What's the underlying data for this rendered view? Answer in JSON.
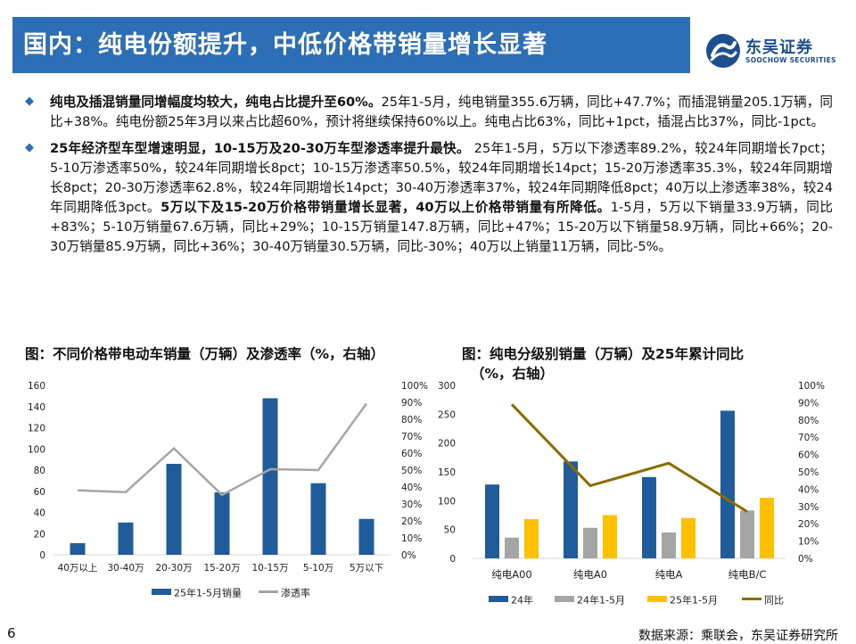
{
  "header": {
    "title": "国内：纯电份额提升，中低价格带销量增长显著",
    "logo_name": "东吴证券",
    "logo_en": "SOOCHOW SECURITIES"
  },
  "bullets": [
    {
      "bold": "纯电及插混销量同增幅度均较大，纯电占比提升至60%。",
      "text": "25年1-5月，纯电销量355.6万辆，同比+47.7%；而插混销量205.1万辆，同比+38%。纯电份额25年3月以来占比超60%，预计将继续保持60%以上。纯电占比63%，同比+1pct，插混占比37%，同比-1pct。"
    },
    {
      "bold": "25年经济型车型增速明显，10-15万及20-30万车型渗透率提升最快。",
      "text": " 25年1-5月，5万以下渗透率89.2%，较24年同期增长7pct；5-10万渗透率50%，较24年同期增长8pct；10-15万渗透率50.5%，较24年同期增长14pct；15-20万渗透率35.3%，较24年同期增长8pct；20-30万渗透率62.8%，较24年同期增长14pct；30-40万渗透率37%，较24年同期降低8pct；40万以上渗透率38%，较24年同期降低3pct。",
      "bold2": "5万以下及15-20万价格带销量增长显著，40万以上价格带销量有所降低。",
      "text2": "1-5月，5万以下销量33.9万辆，同比+83%；5-10万销量67.6万辆，同比+29%；10-15万销量147.8万辆，同比+47%；15-20万以下销量58.9万辆，同比+66%；20-30万销量85.9万辆，同比+36%；30-40万销量30.5万辆，同比-30%；40万以上销量11万辆，同比-5%。"
    }
  ],
  "chart_titles": {
    "left": "图：不同价格带电动车销量（万辆）及渗透率（%，右轴）",
    "right_line1": "图：纯电分级别销量（万辆）及25年累计同比",
    "right_line2": "（%，右轴）"
  },
  "colors": {
    "accent": "#2c6fb7",
    "bar_blue": "#1f5c99",
    "line_gray": "#a6a6a6",
    "bar_gray": "#a5a5a5",
    "bar_gold": "#ffc000",
    "line_olive": "#8c6b00"
  },
  "chart_data": [
    {
      "type": "bar",
      "categories": [
        "40万以上",
        "30-40万",
        "20-30万",
        "15-20万",
        "10-15万",
        "5-10万",
        "5万以下"
      ],
      "series": [
        {
          "name": "25年1-5月销量",
          "type": "bar",
          "axis": "left",
          "values": [
            11,
            30.5,
            85.9,
            58.9,
            147.8,
            67.6,
            33.9
          ]
        },
        {
          "name": "渗透率",
          "type": "line",
          "axis": "right",
          "values": [
            38,
            37,
            62.8,
            35.3,
            50.5,
            50,
            89.2
          ]
        }
      ],
      "y_left": {
        "min": 0,
        "max": 160,
        "ticks": [
          "0",
          "20",
          "40",
          "60",
          "80",
          "100",
          "120",
          "140",
          "160"
        ]
      },
      "y_right": {
        "min": 0,
        "max": 100,
        "ticks": [
          "0%",
          "10%",
          "20%",
          "30%",
          "40%",
          "50%",
          "60%",
          "70%",
          "80%",
          "90%",
          "100%"
        ]
      },
      "legend_position": "bottom",
      "grid": false
    },
    {
      "type": "bar",
      "categories": [
        "纯电A00",
        "纯电A0",
        "纯电A",
        "纯电B/C"
      ],
      "series": [
        {
          "name": "24年",
          "type": "bar",
          "axis": "left",
          "values": [
            128,
            168,
            141,
            256
          ]
        },
        {
          "name": "24年1-5月",
          "type": "bar",
          "axis": "left",
          "values": [
            36,
            53,
            45,
            83
          ]
        },
        {
          "name": "25年1-5月",
          "type": "bar",
          "axis": "left",
          "values": [
            68,
            75,
            70,
            105
          ]
        },
        {
          "name": "同比",
          "type": "line",
          "axis": "right",
          "values": [
            89,
            42,
            55,
            27
          ]
        }
      ],
      "y_left": {
        "min": 0,
        "max": 300,
        "ticks": [
          "0",
          "50",
          "100",
          "150",
          "200",
          "250",
          "300"
        ]
      },
      "y_right": {
        "min": 0,
        "max": 100,
        "ticks": [
          "0%",
          "10%",
          "20%",
          "30%",
          "40%",
          "50%",
          "60%",
          "70%",
          "80%",
          "90%",
          "100%"
        ]
      },
      "legend_position": "bottom",
      "grid": false
    }
  ],
  "footer": {
    "page": "6",
    "source": "数据来源：乘联会，东吴证券研究所"
  }
}
